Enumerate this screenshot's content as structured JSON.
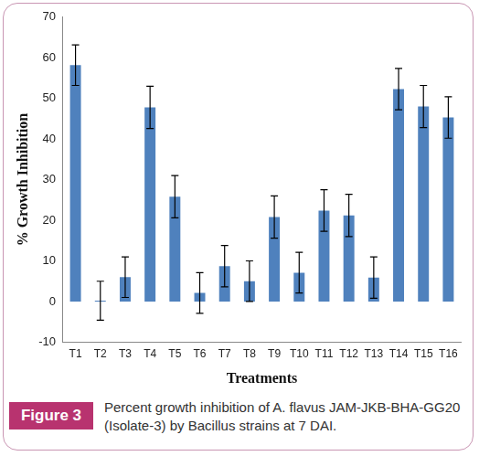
{
  "chart_data": {
    "type": "bar",
    "categories": [
      "T1",
      "T2",
      "T3",
      "T4",
      "T5",
      "T6",
      "T7",
      "T8",
      "T9",
      "T10",
      "T11",
      "T12",
      "T13",
      "T14",
      "T15",
      "T16"
    ],
    "values": [
      58.2,
      0.2,
      6,
      47.8,
      25.8,
      2.1,
      8.7,
      5,
      20.8,
      7.1,
      22.4,
      21.2,
      5.9,
      52.3,
      48,
      45.3
    ],
    "errors": [
      5,
      4.8,
      5,
      5.2,
      5.2,
      5,
      5.1,
      5,
      5.2,
      5,
      5.1,
      5.2,
      5.1,
      5.1,
      5.2,
      5.1
    ],
    "color": "#4f81bd",
    "x_label": "Treatments",
    "y_label": "% Growth Inhibition",
    "ylim": [
      -10,
      70
    ],
    "yticks": [
      -10,
      0,
      10,
      20,
      30,
      40,
      50,
      60,
      70
    ],
    "grid": false
  },
  "figure": {
    "label": "Figure 3",
    "caption": "Percent growth inhibition of A. flavus JAM-JKB-BHA-GG20 (Isolate-3) by Bacillus strains at 7 DAI."
  }
}
